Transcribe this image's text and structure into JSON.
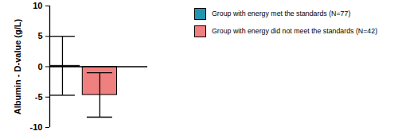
{
  "chart_data": {
    "type": "bar",
    "y_label": "Albumin - D-value (g/L)",
    "categories": [
      null
    ],
    "series": [
      {
        "name": "Group with energy met the standards (N=77)",
        "color": "#2196b0",
        "values": [
          0.15
        ],
        "error": [
          4.85
        ]
      },
      {
        "name": "Group with energy did not meet the standards (N=42)",
        "color": "#f08080",
        "values": [
          -4.65
        ],
        "error": [
          3.65
        ]
      }
    ],
    "ylim": [
      -10,
      10
    ],
    "yticks": [
      -10,
      -5,
      0,
      5,
      10
    ],
    "legend": "right",
    "tick_labels": "y"
  }
}
